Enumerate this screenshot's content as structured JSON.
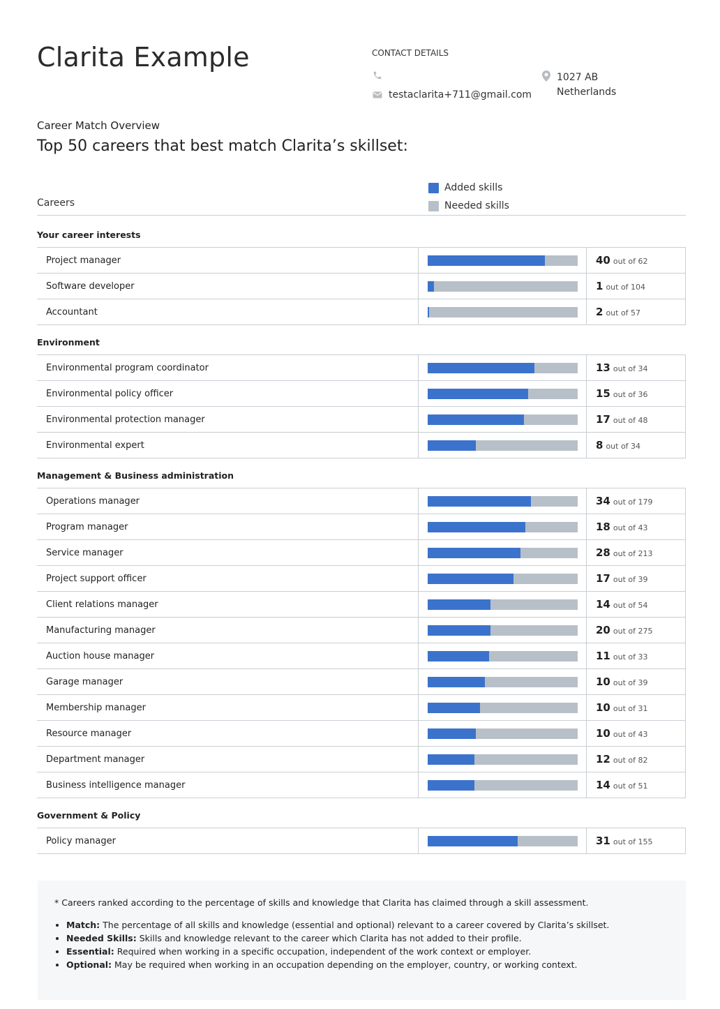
{
  "header": {
    "name": "Clarita Example",
    "contact_title": "CONTACT DETAILS",
    "email": "testaclarita+711@gmail.com",
    "address_line1": "1027 AB",
    "address_line2": "Netherlands"
  },
  "overview": {
    "subtitle": "Career Match Overview",
    "headline": "Top 50 careers that best match Clarita’s skillset:"
  },
  "legend": {
    "added": "Added skills",
    "needed": "Needed skills",
    "added_color": "#3b73cc",
    "needed_color": "#b7c0c8"
  },
  "careers_label": "Careers",
  "out_of_text": "out of",
  "groups": [
    {
      "title": "Your career interests",
      "rows": [
        {
          "name": "Project manager",
          "added": 40,
          "total": 62,
          "match": 0.78
        },
        {
          "name": "Software developer",
          "added": 1,
          "total": 104,
          "match": 0.04
        },
        {
          "name": "Accountant",
          "added": 2,
          "total": 57,
          "match": 0.01
        }
      ]
    },
    {
      "title": "Environment",
      "rows": [
        {
          "name": "Environmental program coordinator",
          "added": 13,
          "total": 34,
          "match": 0.71
        },
        {
          "name": "Environmental policy officer",
          "added": 15,
          "total": 36,
          "match": 0.67
        },
        {
          "name": "Environmental protection manager",
          "added": 17,
          "total": 48,
          "match": 0.64
        },
        {
          "name": "Environmental expert",
          "added": 8,
          "total": 34,
          "match": 0.32
        }
      ]
    },
    {
      "title": "Management & Business administration",
      "rows": [
        {
          "name": "Operations manager",
          "added": 34,
          "total": 179,
          "match": 0.69
        },
        {
          "name": "Program manager",
          "added": 18,
          "total": 43,
          "match": 0.65
        },
        {
          "name": "Service manager",
          "added": 28,
          "total": 213,
          "match": 0.62
        },
        {
          "name": "Project support officer",
          "added": 17,
          "total": 39,
          "match": 0.57
        },
        {
          "name": "Client relations manager",
          "added": 14,
          "total": 54,
          "match": 0.42
        },
        {
          "name": "Manufacturing manager",
          "added": 20,
          "total": 275,
          "match": 0.42
        },
        {
          "name": "Auction house manager",
          "added": 11,
          "total": 33,
          "match": 0.41
        },
        {
          "name": "Garage manager",
          "added": 10,
          "total": 39,
          "match": 0.38
        },
        {
          "name": "Membership manager",
          "added": 10,
          "total": 31,
          "match": 0.35
        },
        {
          "name": "Resource manager",
          "added": 10,
          "total": 43,
          "match": 0.32
        },
        {
          "name": "Department manager",
          "added": 12,
          "total": 82,
          "match": 0.31
        },
        {
          "name": "Business intelligence manager",
          "added": 14,
          "total": 51,
          "match": 0.31
        }
      ]
    },
    {
      "title": "Government & Policy",
      "rows": [
        {
          "name": "Policy manager",
          "added": 31,
          "total": 155,
          "match": 0.6
        }
      ]
    }
  ],
  "notes": {
    "intro": "* Careers ranked according to the percentage of skills and knowledge that Clarita has claimed through a skill assessment.",
    "items": [
      {
        "term": "Match:",
        "text": " The percentage of all skills and knowledge (essential and optional) relevant to a career covered by Clarita’s skillset."
      },
      {
        "term": "Needed Skills:",
        "text": " Skills and knowledge relevant to the career which Clarita has not added to their profile."
      },
      {
        "term": "Essential:",
        "text": " Required when working in a specific occupation, independent of the work context or employer."
      },
      {
        "term": "Optional:",
        "text": " May be required when working in an occupation depending on the employer, country, or working context."
      }
    ]
  }
}
